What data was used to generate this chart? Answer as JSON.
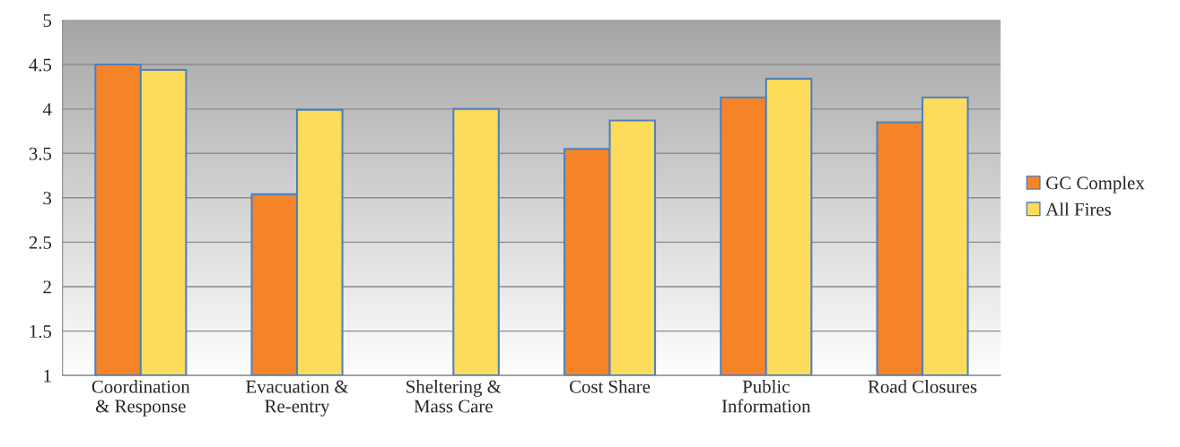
{
  "chart_data": {
    "type": "bar",
    "categories": [
      "Coordination\n& Response",
      "Evacuation &\nRe-entry",
      "Sheltering &\nMass Care",
      "Cost Share",
      "Public\nInformation",
      "Road Closures"
    ],
    "series": [
      {
        "name": "GC Complex",
        "color": "#f58428",
        "values": [
          4.5,
          3.04,
          null,
          3.55,
          4.13,
          3.85
        ]
      },
      {
        "name": "All Fires",
        "color": "#fddc5c",
        "values": [
          4.44,
          3.99,
          4.0,
          3.87,
          4.34,
          4.13
        ]
      }
    ],
    "ylim": [
      1,
      5
    ],
    "yticks": [
      1,
      1.5,
      2,
      2.5,
      3,
      3.5,
      4,
      4.5,
      5
    ],
    "grid": "y",
    "legend": "right"
  }
}
